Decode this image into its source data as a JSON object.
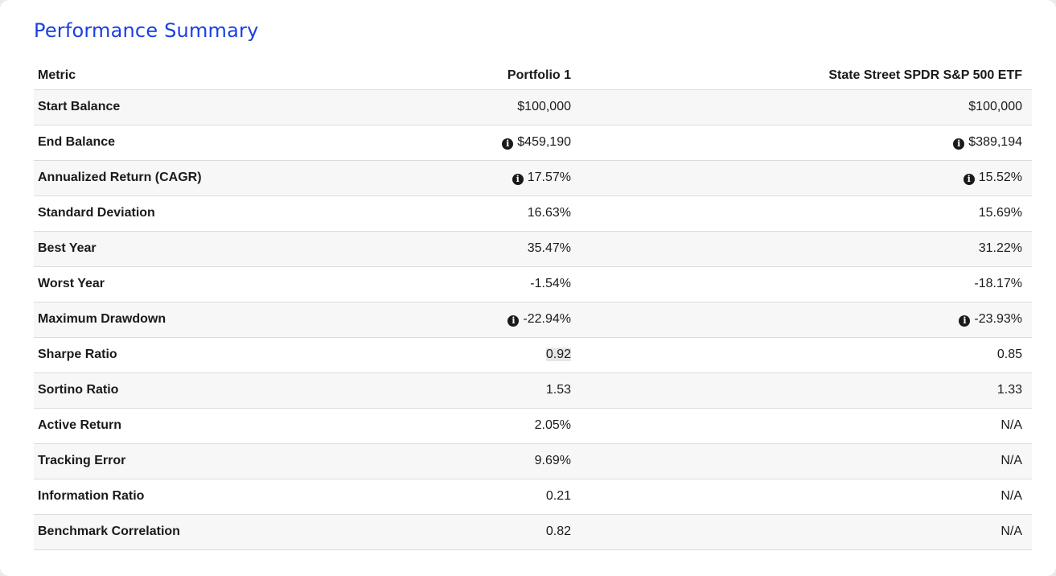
{
  "title": "Performance Summary",
  "columns": {
    "metric": "Metric",
    "portfolio": "Portfolio 1",
    "benchmark": "State Street SPDR S&P 500 ETF"
  },
  "rows": [
    {
      "metric": "Start Balance",
      "portfolio": "$100,000",
      "benchmark": "$100,000",
      "info": false
    },
    {
      "metric": "End Balance",
      "portfolio": "$459,190",
      "benchmark": "$389,194",
      "info": true
    },
    {
      "metric": "Annualized Return (CAGR)",
      "portfolio": "17.57%",
      "benchmark": "15.52%",
      "info": true
    },
    {
      "metric": "Standard Deviation",
      "portfolio": "16.63%",
      "benchmark": "15.69%",
      "info": false
    },
    {
      "metric": "Best Year",
      "portfolio": "35.47%",
      "benchmark": "31.22%",
      "info": false
    },
    {
      "metric": "Worst Year",
      "portfolio": "-1.54%",
      "benchmark": "-18.17%",
      "info": false
    },
    {
      "metric": "Maximum Drawdown",
      "portfolio": "-22.94%",
      "benchmark": "-23.93%",
      "info": true
    },
    {
      "metric": "Sharpe Ratio",
      "portfolio": "0.92",
      "benchmark": "0.85",
      "info": false
    },
    {
      "metric": "Sortino Ratio",
      "portfolio": "1.53",
      "benchmark": "1.33",
      "info": false
    },
    {
      "metric": "Active Return",
      "portfolio": "2.05%",
      "benchmark": "N/A",
      "info": false
    },
    {
      "metric": "Tracking Error",
      "portfolio": "9.69%",
      "benchmark": "N/A",
      "info": false
    },
    {
      "metric": "Information Ratio",
      "portfolio": "0.21",
      "benchmark": "N/A",
      "info": false
    },
    {
      "metric": "Benchmark Correlation",
      "portfolio": "0.82",
      "benchmark": "N/A",
      "info": false
    }
  ],
  "info_icon": "info-circle-icon",
  "colors": {
    "title": "#1a3fe0",
    "stripe": "#f7f7f7",
    "border": "#dcdcdc",
    "text": "#1a1a1a"
  }
}
